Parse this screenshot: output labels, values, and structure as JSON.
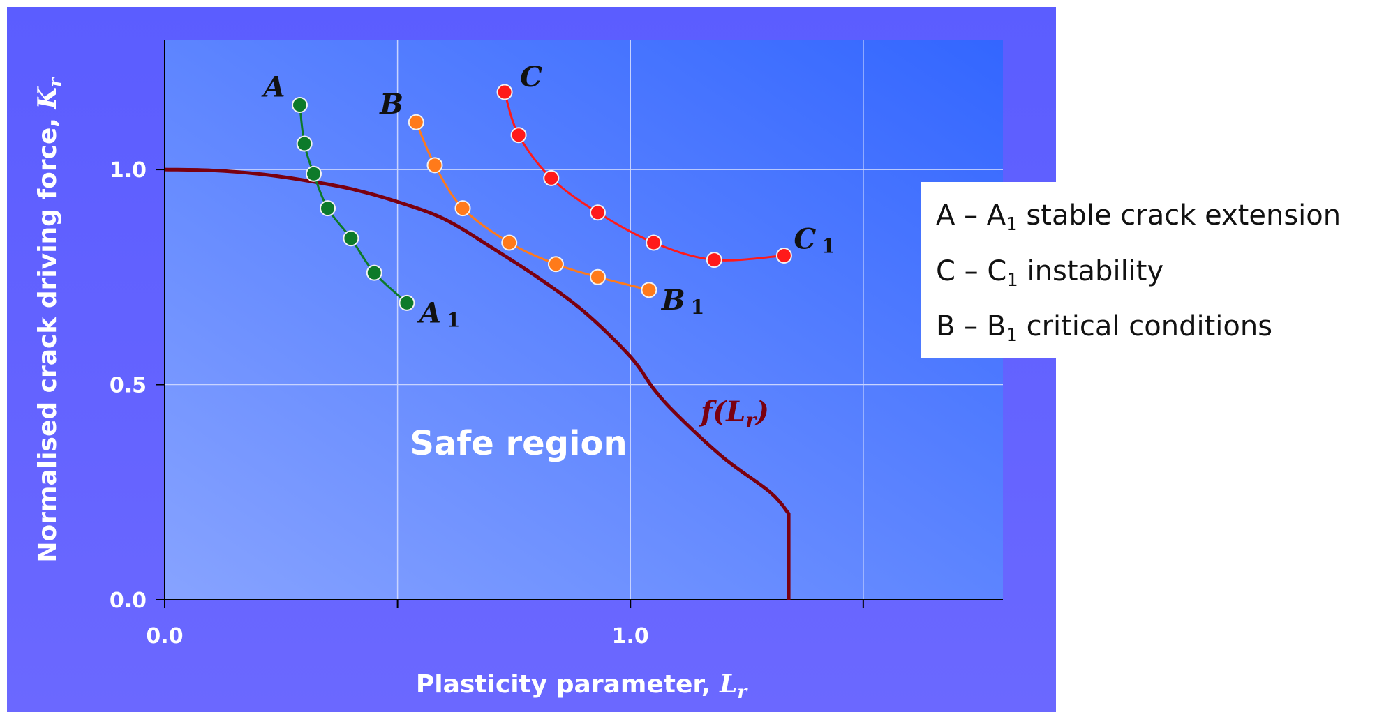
{
  "chart_data": {
    "type": "line",
    "title": "",
    "xlabel": "Plasticity parameter, ",
    "xlabel_symbol": "L",
    "xlabel_sub": "r",
    "ylabel": "Normalised crack driving force, ",
    "ylabel_symbol": "K",
    "ylabel_sub": "r",
    "xlim": [
      0,
      1.8
    ],
    "ylim": [
      0,
      1.3
    ],
    "x_ticks": [
      0,
      0.5,
      1.0,
      1.5
    ],
    "y_ticks": [
      0,
      0.5,
      1.0
    ],
    "x_tick_labels": [
      {
        "value": 0,
        "text": "0.0"
      },
      {
        "value": 1.0,
        "text": "1.0"
      }
    ],
    "y_tick_labels": [
      {
        "value": 0,
        "text": "0.0"
      },
      {
        "value": 0.5,
        "text": "0.5"
      },
      {
        "value": 1.0,
        "text": "1.0"
      }
    ],
    "grid": true,
    "series": [
      {
        "color": "#0d7a2a",
        "start_label": "A",
        "end_label": "A",
        "end_sub": "1",
        "x": [
          0.29,
          0.3,
          0.32,
          0.35,
          0.4,
          0.45,
          0.52
        ],
        "y": [
          1.15,
          1.06,
          0.99,
          0.91,
          0.84,
          0.76,
          0.69
        ]
      },
      {
        "color": "#ff7a1a",
        "start_label": "B",
        "end_label": "B",
        "end_sub": "1",
        "x": [
          0.54,
          0.58,
          0.64,
          0.74,
          0.84,
          0.93,
          1.04
        ],
        "y": [
          1.11,
          1.01,
          0.91,
          0.83,
          0.78,
          0.75,
          0.72
        ]
      },
      {
        "color": "#ff1a1a",
        "start_label": "C",
        "end_label": "C",
        "end_sub": "1",
        "x": [
          0.73,
          0.76,
          0.83,
          0.93,
          1.05,
          1.18,
          1.33
        ],
        "y": [
          1.18,
          1.08,
          0.98,
          0.9,
          0.83,
          0.79,
          0.8
        ]
      }
    ],
    "fad_curve": {
      "color": "#7a0010",
      "label": "f(",
      "label_symbol": "L",
      "label_sub": "r",
      "label_close": ")",
      "x": [
        0,
        0.1,
        0.2,
        0.3,
        0.4,
        0.5,
        0.6,
        0.7,
        0.8,
        0.9,
        1.0,
        1.05,
        1.1,
        1.2,
        1.3,
        1.34,
        1.34
      ],
      "y": [
        1.0,
        0.998,
        0.99,
        0.975,
        0.955,
        0.925,
        0.885,
        0.82,
        0.75,
        0.67,
        0.565,
        0.49,
        0.43,
        0.33,
        0.25,
        0.2,
        0.0
      ]
    },
    "region_label": "Safe region",
    "legend": {
      "placement": "right",
      "items": [
        {
          "pre": "A – A",
          "sub": "1",
          "post": " stable crack extension"
        },
        {
          "pre": "C – C",
          "sub": "1",
          "post": " instability"
        },
        {
          "pre": "B – B",
          "sub": "1",
          "post": " critical conditions"
        }
      ]
    }
  },
  "colors": {
    "panel_top": "#5a5cff",
    "panel_bottom": "#6a66ff",
    "plot_light": "#86a2ff",
    "plot_dark": "#3567ff",
    "grid": "#c9d4ff",
    "axis": "#000000",
    "point_outline": "#f2f2f2"
  }
}
